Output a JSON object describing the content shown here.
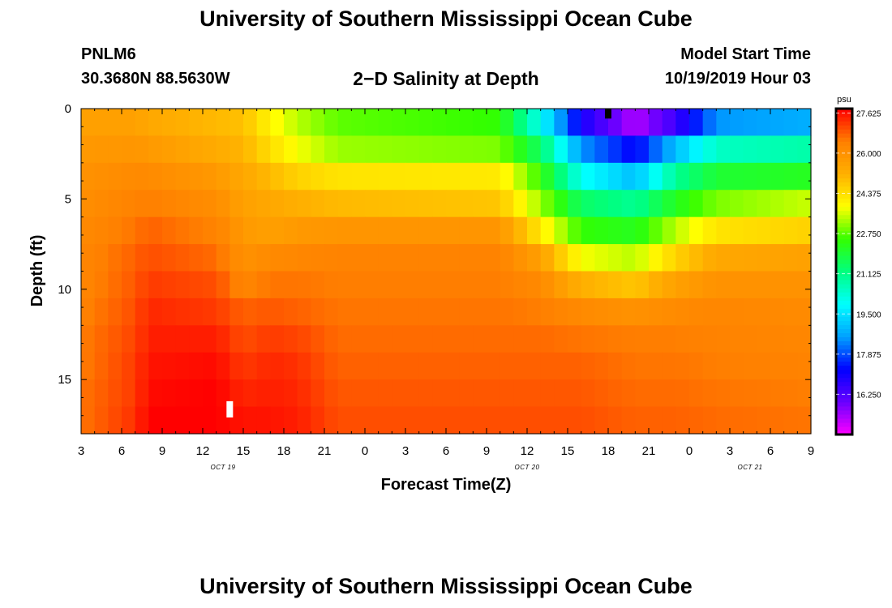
{
  "header": {
    "title": "University of Southern Mississippi Ocean Cube",
    "station_id": "PNLM6",
    "station_location": "30.3680N 88.5630W",
    "plot_title": "2−D Salinity at Depth",
    "model_start_label": "Model Start Time",
    "model_start_value": "10/19/2019 Hour 03"
  },
  "footer": {
    "title": "University of Southern Mississippi Ocean Cube"
  },
  "chart_data": {
    "type": "heatmap",
    "title": "2−D Salinity at Depth",
    "xlabel": "Forecast Time(Z)",
    "ylabel": "Depth (ft)",
    "x_hours_range": [
      3,
      57
    ],
    "x_tick_hours": [
      3,
      6,
      9,
      12,
      15,
      18,
      21,
      24,
      27,
      30,
      33,
      36,
      39,
      42,
      45,
      48,
      51,
      54,
      57
    ],
    "x_tick_labels": [
      "3",
      "6",
      "9",
      "12",
      "15",
      "18",
      "21",
      "0",
      "3",
      "6",
      "9",
      "12",
      "15",
      "18",
      "21",
      "0",
      "3",
      "6",
      "9"
    ],
    "date_labels": [
      {
        "hour": 13.5,
        "label": "OCT 19"
      },
      {
        "hour": 36,
        "label": "OCT 20"
      },
      {
        "hour": 52.5,
        "label": "OCT 21"
      }
    ],
    "ylim": [
      0,
      18
    ],
    "y_ticks": [
      0,
      5,
      10,
      15
    ],
    "y_tick_labels": [
      "0",
      "5",
      "10",
      "15"
    ],
    "colorbar": {
      "units": "psu",
      "range": [
        14.625,
        27.8
      ],
      "labels": [
        "27.625",
        "26.000",
        "24.375",
        "22.750",
        "21.125",
        "19.500",
        "17.875",
        "16.250"
      ],
      "label_values": [
        27.625,
        26.0,
        24.375,
        22.75,
        21.125,
        19.5,
        17.875,
        16.25
      ],
      "colors": [
        "#ff00ff",
        "#6a00ff",
        "#0000ff",
        "#00a0ff",
        "#00ffff",
        "#00ff80",
        "#33ff00",
        "#ffff00",
        "#ffb000",
        "#ff8000",
        "#ff0000"
      ]
    },
    "grid": {
      "depth_levels_ft": [
        0,
        1.5,
        3,
        4.5,
        6,
        7.5,
        9,
        10.5,
        12,
        13.5,
        15,
        16.5
      ],
      "time_keyframes_h": [
        3,
        7,
        8,
        13,
        15,
        17,
        19,
        22,
        34,
        37,
        40,
        44,
        47,
        50,
        57
      ],
      "salinity_psu": [
        [
          25.6,
          25.6,
          25.4,
          25.0,
          24.9,
          24.0,
          23.4,
          22.8,
          22.5,
          20.0,
          17.0,
          15.3,
          16.5,
          18.5,
          18.8
        ],
        [
          25.8,
          25.9,
          25.8,
          25.3,
          25.1,
          24.4,
          23.8,
          23.2,
          23.0,
          21.5,
          18.5,
          17.2,
          19.0,
          20.5,
          20.8
        ],
        [
          26.0,
          26.2,
          26.2,
          25.8,
          25.4,
          25.0,
          24.6,
          24.3,
          24.2,
          22.5,
          20.0,
          19.0,
          21.0,
          22.0,
          22.2
        ],
        [
          26.1,
          26.4,
          26.5,
          26.1,
          25.6,
          25.4,
          25.2,
          25.0,
          24.8,
          23.2,
          21.5,
          21.0,
          22.2,
          23.0,
          23.5
        ],
        [
          26.2,
          26.6,
          26.8,
          26.4,
          25.8,
          25.6,
          25.8,
          25.9,
          25.9,
          24.2,
          22.5,
          22.2,
          23.4,
          24.3,
          24.6
        ],
        [
          26.3,
          26.8,
          27.0,
          26.7,
          26.0,
          26.2,
          26.3,
          26.4,
          26.4,
          25.6,
          23.8,
          23.4,
          24.6,
          25.4,
          25.6
        ],
        [
          26.3,
          26.9,
          27.2,
          27.0,
          26.3,
          26.6,
          26.6,
          26.5,
          26.5,
          26.2,
          25.2,
          24.8,
          25.6,
          26.0,
          26.0
        ],
        [
          26.4,
          27.0,
          27.4,
          27.2,
          26.8,
          26.9,
          26.8,
          26.6,
          26.6,
          26.5,
          26.2,
          26.0,
          26.2,
          26.3,
          26.2
        ],
        [
          26.5,
          27.1,
          27.5,
          27.5,
          27.0,
          27.2,
          27.1,
          26.7,
          26.7,
          26.7,
          26.6,
          26.5,
          26.5,
          26.4,
          26.3
        ],
        [
          26.5,
          27.2,
          27.6,
          27.7,
          27.2,
          27.4,
          27.3,
          26.8,
          26.8,
          26.8,
          26.8,
          26.6,
          26.6,
          26.5,
          26.4
        ],
        [
          26.6,
          27.2,
          27.7,
          27.8,
          27.4,
          27.5,
          27.4,
          26.9,
          26.9,
          26.9,
          26.9,
          26.7,
          26.7,
          26.6,
          26.5
        ],
        [
          26.6,
          27.3,
          27.8,
          27.8,
          27.6,
          27.6,
          27.5,
          27.0,
          27.0,
          27.0,
          27.0,
          26.8,
          26.8,
          26.7,
          26.6
        ]
      ]
    },
    "markers": [
      {
        "name": "white-marker",
        "hour": 14,
        "depth_range": [
          16.2,
          17.1
        ],
        "color": "#ffffff"
      },
      {
        "name": "black-marker",
        "hour": 42,
        "depth_range": [
          0,
          0.55
        ],
        "color": "#000000"
      }
    ]
  }
}
